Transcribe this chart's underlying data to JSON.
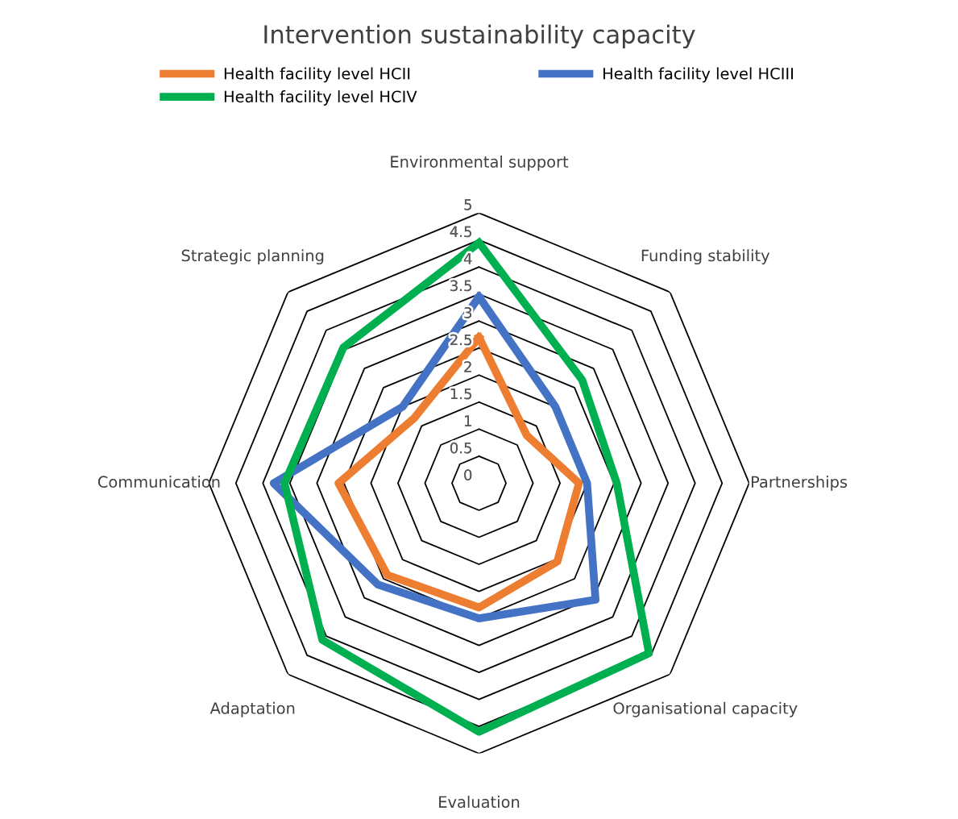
{
  "chart_data": {
    "type": "radar",
    "title": "Intervention sustainability capacity",
    "categories": [
      "Environmental support",
      "Funding stability",
      "Partnerships",
      "Organisational capacity",
      "Evaluation",
      "Adaptation",
      "Communication",
      "Strategic planning"
    ],
    "series": [
      {
        "name": "Health facility level HCII",
        "color": "#ed7d31",
        "values": [
          2.7,
          1.25,
          1.85,
          2.05,
          2.3,
          2.4,
          2.6,
          1.7
        ]
      },
      {
        "name": "Health facility level HCIII",
        "color": "#4472c4",
        "values": [
          3.45,
          2.0,
          2.0,
          3.05,
          2.5,
          2.65,
          3.8,
          2.0
        ]
      },
      {
        "name": "Health facility level HCIV",
        "color": "#00b050",
        "values": [
          4.45,
          2.7,
          2.55,
          4.45,
          4.6,
          4.1,
          3.6,
          3.55
        ]
      }
    ],
    "ylim": [
      0,
      5
    ],
    "yticks": [
      0,
      0.5,
      1,
      1.5,
      2,
      2.5,
      3,
      3.5,
      4,
      4.5,
      5
    ],
    "grid": true,
    "legend": "top",
    "marker": "none"
  }
}
